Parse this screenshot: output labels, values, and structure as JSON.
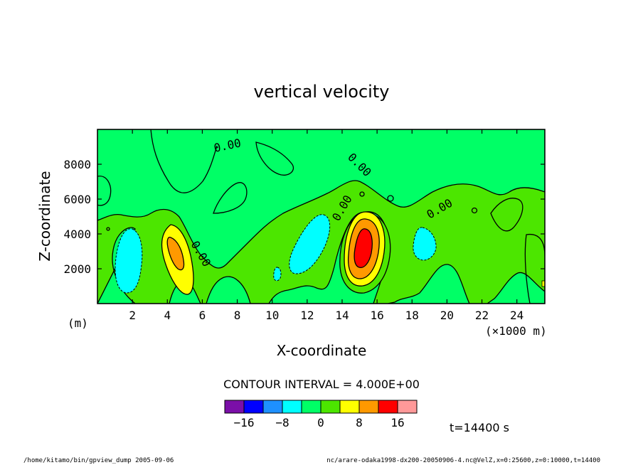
{
  "chart_data": {
    "type": "heatmap",
    "title": "vertical velocity",
    "xlabel": "X-coordinate",
    "ylabel": "Z-coordinate",
    "x_unit_note": "(×1000 m)",
    "y_unit_note": "(m)",
    "xlim": [
      0,
      25.6
    ],
    "ylim": [
      0,
      10000
    ],
    "x_ticks": [
      2,
      4,
      6,
      8,
      10,
      12,
      14,
      16,
      18,
      20,
      22,
      24
    ],
    "y_ticks": [
      2000,
      4000,
      6000,
      8000
    ],
    "contour_interval_text": "CONTOUR INTERVAL = 4.000E+00",
    "contour_labels": [
      "0.00",
      "0.00",
      "0.00",
      "0.00",
      "0.00"
    ],
    "colorbar": {
      "bounds": [
        -20,
        -16,
        -12,
        -8,
        -4,
        0,
        4,
        8,
        12,
        16,
        20
      ],
      "colors": [
        "#7b0fa8",
        "#0000ff",
        "#1e90ff",
        "#00ffff",
        "#00ff66",
        "#4ce600",
        "#ffff00",
        "#ff9900",
        "#ff0000",
        "#ff9999"
      ],
      "tick_labels": [
        "−16",
        "−8",
        "0",
        "8",
        "16"
      ],
      "tick_values": [
        -16,
        -8,
        0,
        8,
        16
      ]
    },
    "time_label": "t=14400 s",
    "features": [
      {
        "kind": "updraft",
        "x": 15.1,
        "z": 3300,
        "peak": 14
      },
      {
        "kind": "updraft",
        "x": 4.6,
        "z": 2900,
        "peak": 10
      },
      {
        "kind": "downdraft",
        "x": 12.3,
        "z": 2700,
        "peak": -5
      },
      {
        "kind": "downdraft",
        "x": 1.8,
        "z": 2300,
        "peak": -5
      },
      {
        "kind": "downdraft",
        "x": 18.8,
        "z": 3300,
        "peak": -5
      }
    ]
  },
  "footer": {
    "left": "/home/kitamo/bin/gpview_dump  2005-09-06",
    "right": "nc/arare-odaka1998-dx200-20050906-4.nc@VelZ,x=0:25600,z=0:10000,t=14400"
  }
}
